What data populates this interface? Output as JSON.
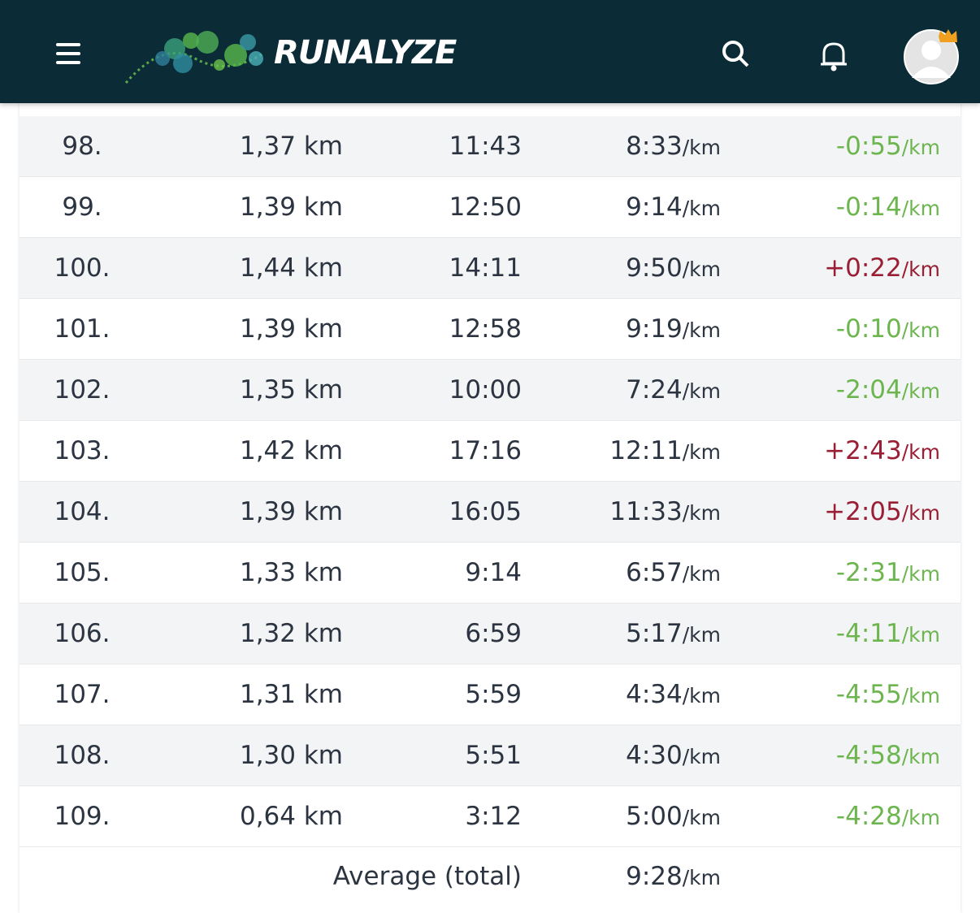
{
  "header": {
    "brand": "RUNALYZE"
  },
  "table": {
    "unit": "/km",
    "rows": [
      {
        "lap": "98.",
        "distance": "1,37 km",
        "time": "11:43",
        "pace": "8:33",
        "diff": "-0:55"
      },
      {
        "lap": "99.",
        "distance": "1,39 km",
        "time": "12:50",
        "pace": "9:14",
        "diff": "-0:14"
      },
      {
        "lap": "100.",
        "distance": "1,44 km",
        "time": "14:11",
        "pace": "9:50",
        "diff": "+0:22"
      },
      {
        "lap": "101.",
        "distance": "1,39 km",
        "time": "12:58",
        "pace": "9:19",
        "diff": "-0:10"
      },
      {
        "lap": "102.",
        "distance": "1,35 km",
        "time": "10:00",
        "pace": "7:24",
        "diff": "-2:04"
      },
      {
        "lap": "103.",
        "distance": "1,42 km",
        "time": "17:16",
        "pace": "12:11",
        "diff": "+2:43"
      },
      {
        "lap": "104.",
        "distance": "1,39 km",
        "time": "16:05",
        "pace": "11:33",
        "diff": "+2:05"
      },
      {
        "lap": "105.",
        "distance": "1,33 km",
        "time": "9:14",
        "pace": "6:57",
        "diff": "-2:31"
      },
      {
        "lap": "106.",
        "distance": "1,32 km",
        "time": "6:59",
        "pace": "5:17",
        "diff": "-4:11"
      },
      {
        "lap": "107.",
        "distance": "1,31 km",
        "time": "5:59",
        "pace": "4:34",
        "diff": "-4:55"
      },
      {
        "lap": "108.",
        "distance": "1,30 km",
        "time": "5:51",
        "pace": "4:30",
        "diff": "-4:58"
      },
      {
        "lap": "109.",
        "distance": "0,64 km",
        "time": "3:12",
        "pace": "5:00",
        "diff": "-4:28"
      }
    ],
    "average": {
      "label": "Average (total)",
      "pace": "9:28"
    }
  }
}
